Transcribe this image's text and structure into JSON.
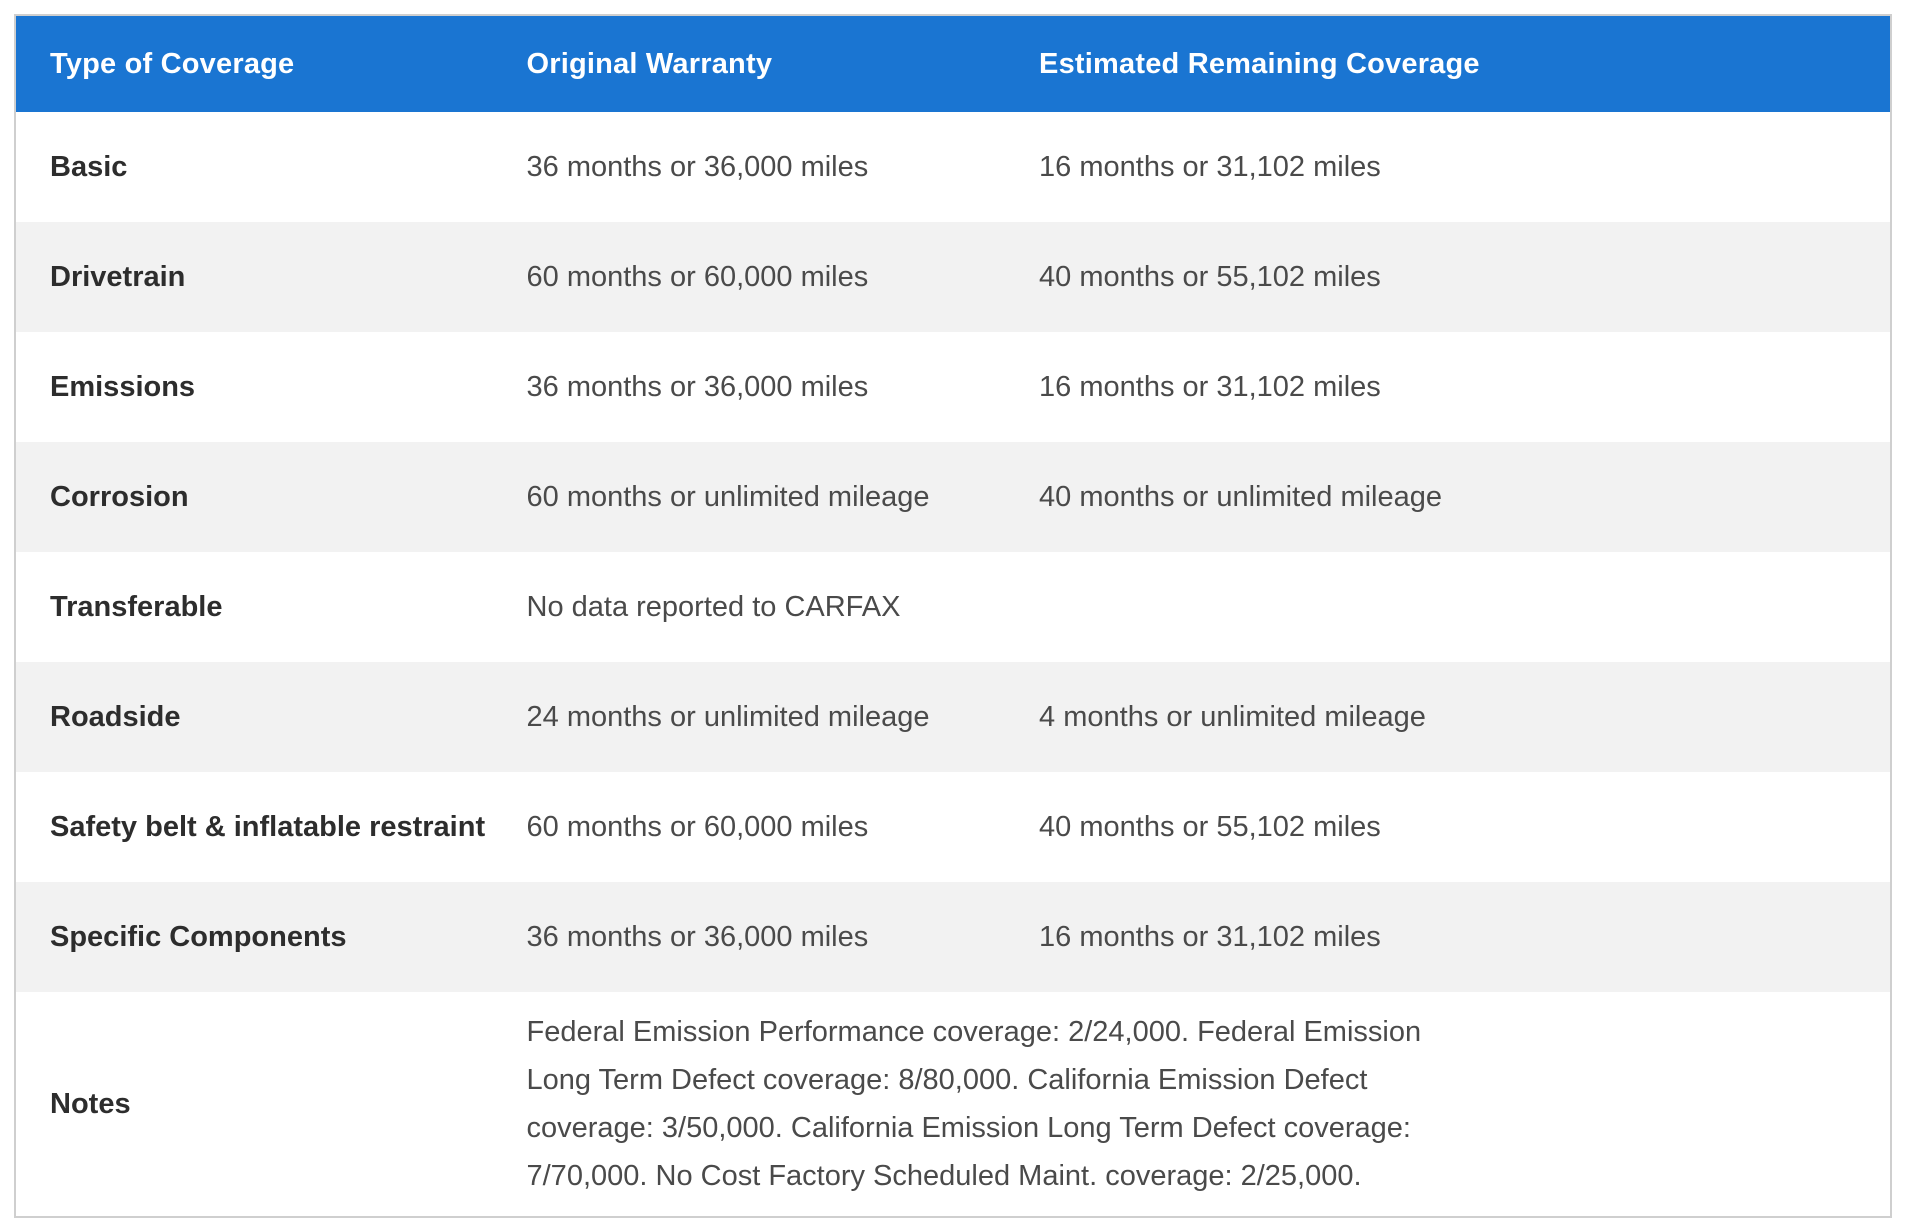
{
  "table": {
    "columns": [
      "Type of Coverage",
      "Original Warranty",
      "Estimated Remaining Coverage"
    ],
    "rows": [
      {
        "type": "Basic",
        "original": "36 months or 36,000 miles",
        "remaining": "16 months or 31,102 miles"
      },
      {
        "type": "Drivetrain",
        "original": "60 months or 60,000 miles",
        "remaining": "40 months or 55,102 miles"
      },
      {
        "type": "Emissions",
        "original": "36 months or 36,000 miles",
        "remaining": "16 months or 31,102 miles"
      },
      {
        "type": "Corrosion",
        "original": "60 months or unlimited mileage",
        "remaining": "40 months or unlimited mileage"
      },
      {
        "type": "Transferable",
        "original": "No data reported to CARFAX",
        "remaining": ""
      },
      {
        "type": "Roadside",
        "original": "24 months or unlimited mileage",
        "remaining": "4 months or unlimited mileage"
      },
      {
        "type": "Safety belt & inflatable restraint",
        "original": "60 months or 60,000 miles",
        "remaining": "40 months or 55,102 miles"
      },
      {
        "type": "Specific Components",
        "original": "36 months or 36,000 miles",
        "remaining": "16 months or 31,102 miles"
      }
    ],
    "notes_label": "Notes",
    "notes_text": "Federal Emission Performance coverage: 2/24,000. Federal Emission Long Term Defect coverage: 8/80,000. California Emission Defect coverage: 3/50,000. California Emission Long Term Defect coverage: 7/70,000. No Cost Factory Scheduled Maint. coverage: 2/25,000.",
    "colors": {
      "header_bg": "#1a75d2",
      "header_text": "#ffffff",
      "alt_row_bg": "#f2f2f2",
      "border": "#cfcfcf",
      "label_text": "#2d2d2d",
      "value_text": "#4a4a4a"
    }
  }
}
